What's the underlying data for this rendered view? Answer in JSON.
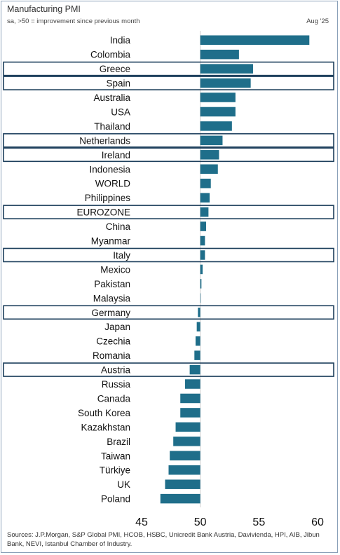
{
  "header": {
    "title": "Manufacturing PMI",
    "subtitle": "sa, >50 = improvement since previous month",
    "date": "Aug '25"
  },
  "footer": {
    "sources": "Sources: J.P.Morgan, S&P Global PMI, HCOB, HSBC, Unicredit Bank Austria, Davivienda, HPI, AIB, Jibun Bank, NEVI, Istanbul Chamber of Industry."
  },
  "chart_data": {
    "type": "bar",
    "orientation": "horizontal",
    "title": "Manufacturing PMI",
    "subtitle": "sa, >50 = improvement since previous month",
    "baseline": 50,
    "xlim": [
      45,
      61
    ],
    "xticks": [
      45,
      50,
      55,
      60
    ],
    "bar_color": "#1f6e8a",
    "highlight_border_color": "#1d3f5c",
    "categories": [
      "India",
      "Colombia",
      "Greece",
      "Spain",
      "Australia",
      "USA",
      "Thailand",
      "Netherlands",
      "Ireland",
      "Indonesia",
      "WORLD",
      "Philippines",
      "EUROZONE",
      "China",
      "Myanmar",
      "Italy",
      "Mexico",
      "Pakistan",
      "Malaysia",
      "Germany",
      "Japan",
      "Czechia",
      "Romania",
      "Austria",
      "Russia",
      "Canada",
      "South Korea",
      "Kazakhstan",
      "Brazil",
      "Taiwan",
      "Türkiye",
      "UK",
      "Poland"
    ],
    "values": [
      59.3,
      53.3,
      54.5,
      54.3,
      53.0,
      53.0,
      52.7,
      51.9,
      51.6,
      51.5,
      50.9,
      50.8,
      50.7,
      50.5,
      50.4,
      50.4,
      50.2,
      50.1,
      50.0,
      49.8,
      49.7,
      49.6,
      49.5,
      49.1,
      48.7,
      48.3,
      48.3,
      47.9,
      47.7,
      47.4,
      47.3,
      47.0,
      46.6
    ],
    "highlighted": [
      "Greece",
      "Spain",
      "Netherlands",
      "Ireland",
      "EUROZONE",
      "Italy",
      "Germany",
      "Austria"
    ]
  }
}
